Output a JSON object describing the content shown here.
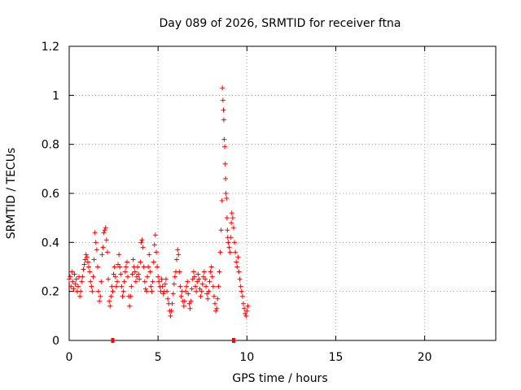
{
  "chart_data": {
    "type": "scatter",
    "title": "Day 089 of 2026, SRMTID for receiver ftna",
    "xlabel": "GPS time / hours",
    "ylabel": "SRMTID / TECUs",
    "xlim": [
      0,
      24
    ],
    "ylim": [
      0,
      1.2
    ],
    "x_ticks": [
      0,
      5,
      10,
      15,
      20
    ],
    "x_tick_labels": [
      "0",
      "5",
      "10",
      "15",
      "20"
    ],
    "y_ticks": [
      0,
      0.2,
      0.4,
      0.6,
      0.8,
      1,
      1.2
    ],
    "y_tick_labels": [
      "0",
      "0.2",
      "0.4",
      "0.6",
      "0.8",
      "1",
      "1.2"
    ],
    "grid": true,
    "marker": "plus",
    "color": "#ff0000",
    "series": [
      {
        "name": "SRMTID",
        "points": [
          [
            0.0,
            0.25
          ],
          [
            0.05,
            0.26
          ],
          [
            0.1,
            0.22
          ],
          [
            0.15,
            0.28
          ],
          [
            0.2,
            0.24
          ],
          [
            0.25,
            0.21
          ],
          [
            0.3,
            0.27
          ],
          [
            0.35,
            0.23
          ],
          [
            0.4,
            0.25
          ],
          [
            0.45,
            0.2
          ],
          [
            0.5,
            0.22
          ],
          [
            0.55,
            0.26
          ],
          [
            0.6,
            0.18
          ],
          [
            0.65,
            0.2
          ],
          [
            0.7,
            0.24
          ],
          [
            0.75,
            0.26
          ],
          [
            0.8,
            0.29
          ],
          [
            0.85,
            0.31
          ],
          [
            0.9,
            0.33
          ],
          [
            0.95,
            0.35
          ],
          [
            1.0,
            0.34
          ],
          [
            1.05,
            0.32
          ],
          [
            1.1,
            0.3
          ],
          [
            1.15,
            0.28
          ],
          [
            1.2,
            0.24
          ],
          [
            1.25,
            0.22
          ],
          [
            1.3,
            0.2
          ],
          [
            1.35,
            0.26
          ],
          [
            1.4,
            0.33
          ],
          [
            1.45,
            0.44
          ],
          [
            1.5,
            0.4
          ],
          [
            1.55,
            0.37
          ],
          [
            1.6,
            0.3
          ],
          [
            1.65,
            0.2
          ],
          [
            1.7,
            0.16
          ],
          [
            1.75,
            0.18
          ],
          [
            1.8,
            0.24
          ],
          [
            1.85,
            0.35
          ],
          [
            1.9,
            0.38
          ],
          [
            1.95,
            0.44
          ],
          [
            2.0,
            0.45
          ],
          [
            2.05,
            0.46
          ],
          [
            2.1,
            0.41
          ],
          [
            2.15,
            0.36
          ],
          [
            2.2,
            0.25
          ],
          [
            2.25,
            0.16
          ],
          [
            2.3,
            0.14
          ],
          [
            2.35,
            0.18
          ],
          [
            2.4,
            0.22
          ],
          [
            2.45,
            0.2
          ],
          [
            2.5,
            0.27
          ],
          [
            2.55,
            0.3
          ],
          [
            2.6,
            0.26
          ],
          [
            2.65,
            0.22
          ],
          [
            2.7,
            0.24
          ],
          [
            2.75,
            0.31
          ],
          [
            2.8,
            0.35
          ],
          [
            2.85,
            0.3
          ],
          [
            2.9,
            0.27
          ],
          [
            2.95,
            0.22
          ],
          [
            3.0,
            0.18
          ],
          [
            3.05,
            0.2
          ],
          [
            3.1,
            0.24
          ],
          [
            3.15,
            0.28
          ],
          [
            3.2,
            0.3
          ],
          [
            3.25,
            0.32
          ],
          [
            3.3,
            0.26
          ],
          [
            3.35,
            0.18
          ],
          [
            3.4,
            0.14
          ],
          [
            3.45,
            0.18
          ],
          [
            3.5,
            0.22
          ],
          [
            3.55,
            0.27
          ],
          [
            3.6,
            0.33
          ],
          [
            3.65,
            0.3
          ],
          [
            3.7,
            0.28
          ],
          [
            3.75,
            0.24
          ],
          [
            3.8,
            0.26
          ],
          [
            3.85,
            0.3
          ],
          [
            3.9,
            0.27
          ],
          [
            3.95,
            0.25
          ],
          [
            4.0,
            0.32
          ],
          [
            4.05,
            0.4
          ],
          [
            4.1,
            0.41
          ],
          [
            4.15,
            0.38
          ],
          [
            4.2,
            0.3
          ],
          [
            4.25,
            0.24
          ],
          [
            4.3,
            0.21
          ],
          [
            4.35,
            0.2
          ],
          [
            4.4,
            0.26
          ],
          [
            4.45,
            0.3
          ],
          [
            4.5,
            0.35
          ],
          [
            4.55,
            0.28
          ],
          [
            4.6,
            0.22
          ],
          [
            4.65,
            0.2
          ],
          [
            4.7,
            0.24
          ],
          [
            4.75,
            0.32
          ],
          [
            4.8,
            0.39
          ],
          [
            4.85,
            0.43
          ],
          [
            4.9,
            0.36
          ],
          [
            4.95,
            0.3
          ],
          [
            5.0,
            0.26
          ],
          [
            5.05,
            0.24
          ],
          [
            5.1,
            0.22
          ],
          [
            5.15,
            0.2
          ],
          [
            5.2,
            0.25
          ],
          [
            5.25,
            0.22
          ],
          [
            5.3,
            0.19
          ],
          [
            5.35,
            0.2
          ],
          [
            5.4,
            0.23
          ],
          [
            5.45,
            0.25
          ],
          [
            5.5,
            0.2
          ],
          [
            5.55,
            0.17
          ],
          [
            5.6,
            0.15
          ],
          [
            5.65,
            0.12
          ],
          [
            5.7,
            0.1
          ],
          [
            5.75,
            0.12
          ],
          [
            5.8,
            0.15
          ],
          [
            5.85,
            0.19
          ],
          [
            5.9,
            0.23
          ],
          [
            5.95,
            0.26
          ],
          [
            6.0,
            0.28
          ],
          [
            6.05,
            0.33
          ],
          [
            6.1,
            0.37
          ],
          [
            6.15,
            0.35
          ],
          [
            6.2,
            0.28
          ],
          [
            6.25,
            0.22
          ],
          [
            6.3,
            0.18
          ],
          [
            6.35,
            0.2
          ],
          [
            6.4,
            0.16
          ],
          [
            6.45,
            0.14
          ],
          [
            6.5,
            0.16
          ],
          [
            6.55,
            0.2
          ],
          [
            6.6,
            0.22
          ],
          [
            6.65,
            0.24
          ],
          [
            6.7,
            0.19
          ],
          [
            6.75,
            0.15
          ],
          [
            6.8,
            0.13
          ],
          [
            6.85,
            0.16
          ],
          [
            6.9,
            0.21
          ],
          [
            6.95,
            0.25
          ],
          [
            7.0,
            0.28
          ],
          [
            7.05,
            0.26
          ],
          [
            7.1,
            0.22
          ],
          [
            7.15,
            0.2
          ],
          [
            7.2,
            0.24
          ],
          [
            7.25,
            0.27
          ],
          [
            7.3,
            0.25
          ],
          [
            7.35,
            0.21
          ],
          [
            7.4,
            0.18
          ],
          [
            7.45,
            0.2
          ],
          [
            7.5,
            0.23
          ],
          [
            7.55,
            0.26
          ],
          [
            7.6,
            0.28
          ],
          [
            7.65,
            0.25
          ],
          [
            7.7,
            0.22
          ],
          [
            7.75,
            0.19
          ],
          [
            7.8,
            0.17
          ],
          [
            7.85,
            0.2
          ],
          [
            7.9,
            0.24
          ],
          [
            7.95,
            0.28
          ],
          [
            8.0,
            0.3
          ],
          [
            8.05,
            0.26
          ],
          [
            8.1,
            0.22
          ],
          [
            8.15,
            0.18
          ],
          [
            8.2,
            0.15
          ],
          [
            8.25,
            0.12
          ],
          [
            8.3,
            0.13
          ],
          [
            8.35,
            0.17
          ],
          [
            8.4,
            0.22
          ],
          [
            8.45,
            0.28
          ],
          [
            8.5,
            0.36
          ],
          [
            8.55,
            0.45
          ],
          [
            8.6,
            0.57
          ],
          [
            8.62,
            1.03
          ],
          [
            8.65,
            0.98
          ],
          [
            8.68,
            0.94
          ],
          [
            8.7,
            0.9
          ],
          [
            8.72,
            0.82
          ],
          [
            8.75,
            0.79
          ],
          [
            8.78,
            0.72
          ],
          [
            8.8,
            0.66
          ],
          [
            8.82,
            0.6
          ],
          [
            8.85,
            0.58
          ],
          [
            8.88,
            0.5
          ],
          [
            8.9,
            0.45
          ],
          [
            8.92,
            0.42
          ],
          [
            8.95,
            0.4
          ],
          [
            9.0,
            0.38
          ],
          [
            9.05,
            0.36
          ],
          [
            9.1,
            0.42
          ],
          [
            9.12,
            0.48
          ],
          [
            9.15,
            0.52
          ],
          [
            9.2,
            0.5
          ],
          [
            9.25,
            0.46
          ],
          [
            9.3,
            0.4
          ],
          [
            9.35,
            0.36
          ],
          [
            9.4,
            0.32
          ],
          [
            9.45,
            0.3
          ],
          [
            9.5,
            0.34
          ],
          [
            9.55,
            0.28
          ],
          [
            9.6,
            0.25
          ],
          [
            9.65,
            0.22
          ],
          [
            9.7,
            0.2
          ],
          [
            9.75,
            0.18
          ],
          [
            9.8,
            0.15
          ],
          [
            9.85,
            0.13
          ],
          [
            9.9,
            0.11
          ],
          [
            9.95,
            0.1
          ],
          [
            10.0,
            0.12
          ],
          [
            10.05,
            0.14
          ]
        ]
      }
    ],
    "gap_markers_x": [
      2.45,
      9.25
    ]
  }
}
